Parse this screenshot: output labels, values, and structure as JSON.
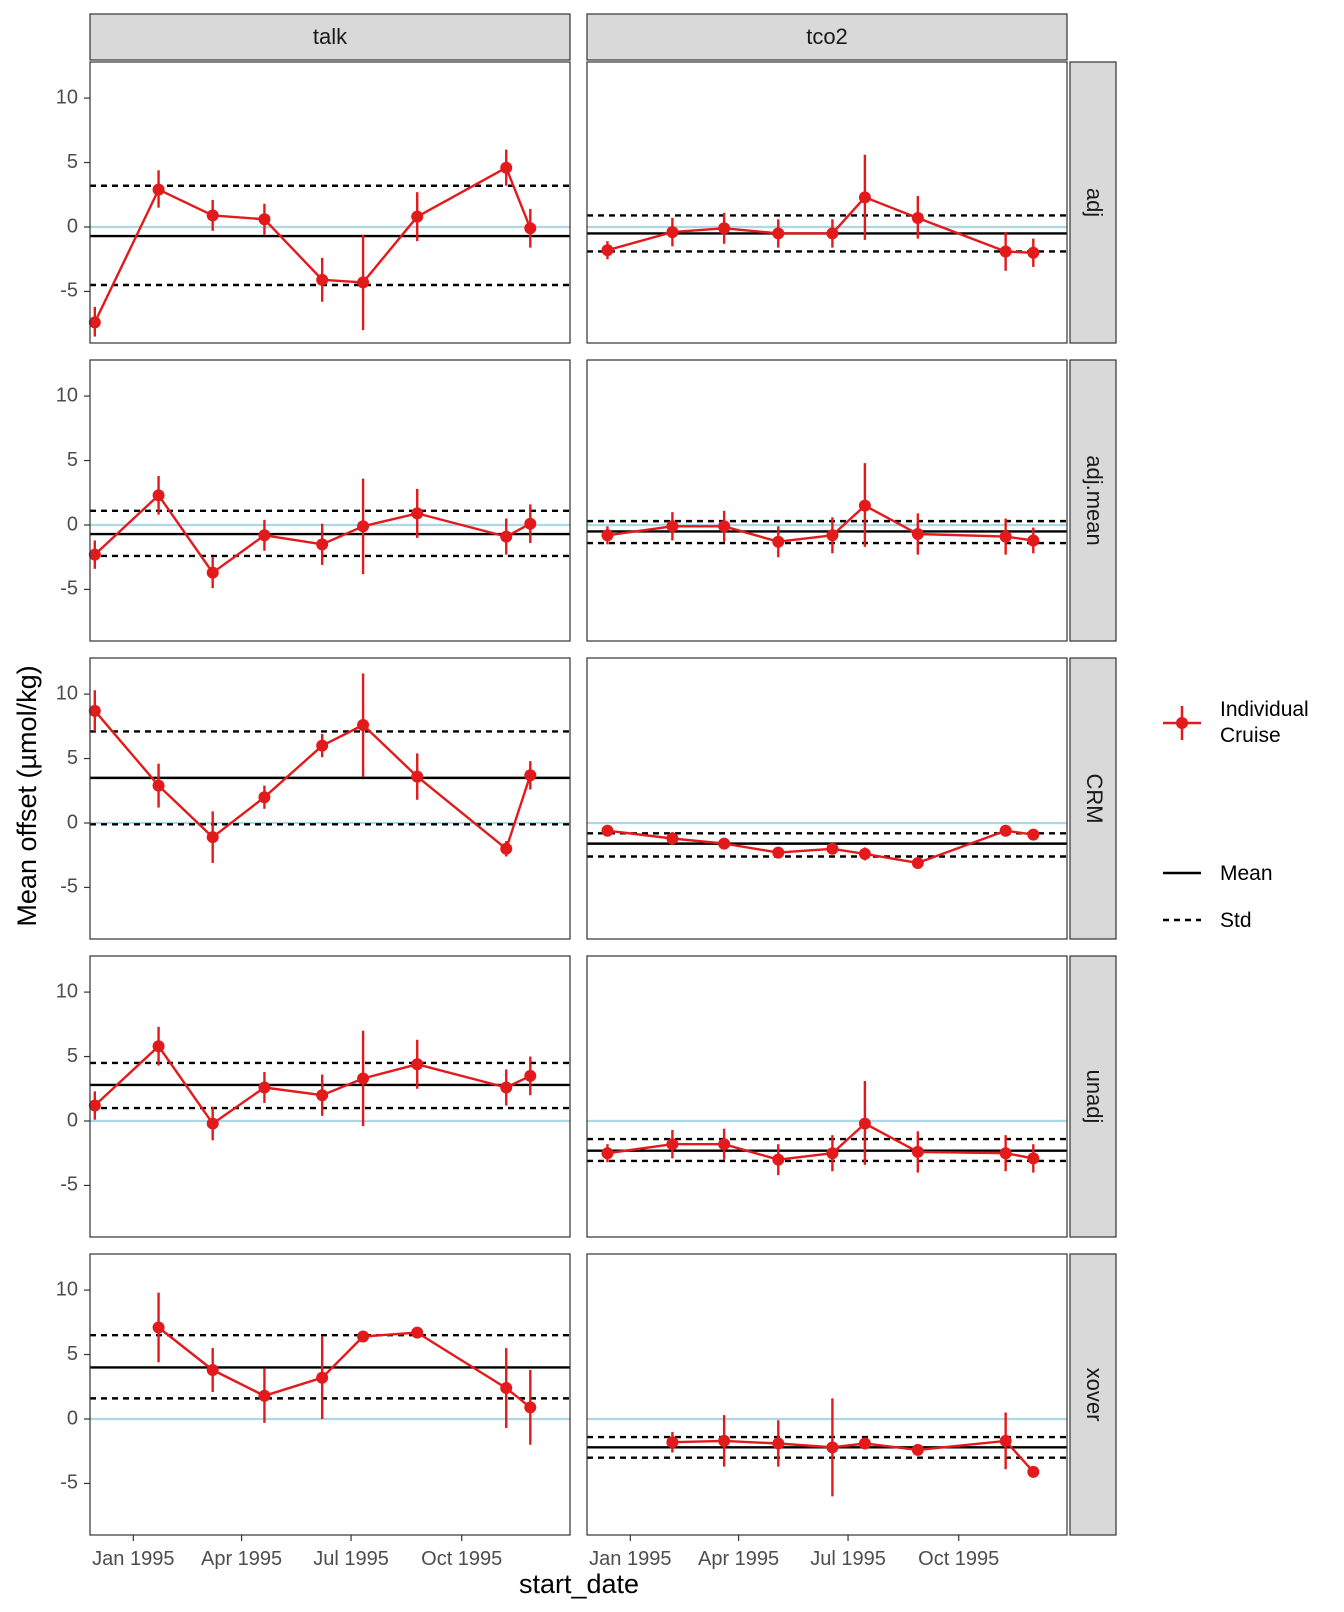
{
  "chart_data": {
    "type": "line",
    "ylabel": "Mean offset (µmol/kg)",
    "xlabel": "start_date",
    "xlim": [
      -36,
      363
    ],
    "ylim": [
      -9,
      12.8
    ],
    "yticks": [
      10,
      5,
      0,
      -5
    ],
    "ytick_labels": [
      "10",
      "5",
      "0",
      "-5"
    ],
    "xticks": [
      0,
      90,
      181,
      273
    ],
    "xtick_labels": [
      "Jan 1995",
      "Apr 1995",
      "Jul 1995",
      "Oct 1995"
    ],
    "zero_line": 0,
    "columns": [
      {
        "key": "talk",
        "label": "talk"
      },
      {
        "key": "tco2",
        "label": "tco2"
      }
    ],
    "rows": [
      {
        "key": "adj",
        "label": "adj"
      },
      {
        "key": "adj_mean",
        "label": "adj.mean"
      },
      {
        "key": "CRM",
        "label": "CRM"
      },
      {
        "key": "unadj",
        "label": "unadj"
      },
      {
        "key": "xover",
        "label": "xover"
      }
    ],
    "panels": [
      {
        "row": "adj",
        "col": "talk",
        "mean": -0.7,
        "std_upper": 3.2,
        "std_lower": -4.5,
        "points": [
          {
            "x": -32,
            "y": -7.4,
            "lo": -8.5,
            "hi": -6.2
          },
          {
            "x": 21,
            "y": 2.9,
            "lo": 1.5,
            "hi": 4.4
          },
          {
            "x": 66,
            "y": 0.9,
            "lo": -0.3,
            "hi": 2.1
          },
          {
            "x": 109,
            "y": 0.6,
            "lo": -0.6,
            "hi": 1.8
          },
          {
            "x": 157,
            "y": -4.1,
            "lo": -5.8,
            "hi": -2.4
          },
          {
            "x": 191,
            "y": -4.3,
            "lo": -8.0,
            "hi": -0.6
          },
          {
            "x": 236,
            "y": 0.8,
            "lo": -1.1,
            "hi": 2.7
          },
          {
            "x": 310,
            "y": 4.6,
            "lo": 3.2,
            "hi": 6.0
          },
          {
            "x": 330,
            "y": -0.1,
            "lo": -1.6,
            "hi": 1.4
          }
        ]
      },
      {
        "row": "adj",
        "col": "tco2",
        "mean": -0.5,
        "std_upper": 0.9,
        "std_lower": -1.9,
        "points": [
          {
            "x": -19,
            "y": -1.8,
            "lo": -2.5,
            "hi": -1.1
          },
          {
            "x": 35,
            "y": -0.4,
            "lo": -1.5,
            "hi": 0.7
          },
          {
            "x": 78,
            "y": -0.1,
            "lo": -1.3,
            "hi": 1.1
          },
          {
            "x": 123,
            "y": -0.5,
            "lo": -1.6,
            "hi": 0.6
          },
          {
            "x": 168,
            "y": -0.5,
            "lo": -1.6,
            "hi": 0.6
          },
          {
            "x": 195,
            "y": 2.3,
            "lo": -1.0,
            "hi": 5.6
          },
          {
            "x": 239,
            "y": 0.7,
            "lo": -0.9,
            "hi": 2.4
          },
          {
            "x": 312,
            "y": -1.9,
            "lo": -3.4,
            "hi": -0.4
          },
          {
            "x": 335,
            "y": -2.0,
            "lo": -3.1,
            "hi": -0.9
          }
        ]
      },
      {
        "row": "adj_mean",
        "col": "talk",
        "mean": -0.7,
        "std_upper": 1.1,
        "std_lower": -2.4,
        "points": [
          {
            "x": -32,
            "y": -2.3,
            "lo": -3.4,
            "hi": -1.2
          },
          {
            "x": 21,
            "y": 2.3,
            "lo": 0.8,
            "hi": 3.8
          },
          {
            "x": 66,
            "y": -3.7,
            "lo": -4.9,
            "hi": -2.5
          },
          {
            "x": 109,
            "y": -0.8,
            "lo": -2.0,
            "hi": 0.4
          },
          {
            "x": 157,
            "y": -1.5,
            "lo": -3.1,
            "hi": 0.1
          },
          {
            "x": 191,
            "y": -0.1,
            "lo": -3.8,
            "hi": 3.6
          },
          {
            "x": 236,
            "y": 0.9,
            "lo": -1.0,
            "hi": 2.8
          },
          {
            "x": 310,
            "y": -0.9,
            "lo": -2.3,
            "hi": 0.5
          },
          {
            "x": 330,
            "y": 0.1,
            "lo": -1.4,
            "hi": 1.6
          }
        ]
      },
      {
        "row": "adj_mean",
        "col": "tco2",
        "mean": -0.5,
        "std_upper": 0.3,
        "std_lower": -1.4,
        "points": [
          {
            "x": -19,
            "y": -0.8,
            "lo": -1.5,
            "hi": -0.1
          },
          {
            "x": 35,
            "y": -0.1,
            "lo": -1.2,
            "hi": 1.0
          },
          {
            "x": 78,
            "y": -0.1,
            "lo": -1.3,
            "hi": 1.1
          },
          {
            "x": 123,
            "y": -1.3,
            "lo": -2.5,
            "hi": -0.1
          },
          {
            "x": 168,
            "y": -0.8,
            "lo": -2.2,
            "hi": 0.6
          },
          {
            "x": 195,
            "y": 1.5,
            "lo": -1.7,
            "hi": 4.8
          },
          {
            "x": 239,
            "y": -0.7,
            "lo": -2.3,
            "hi": 0.9
          },
          {
            "x": 312,
            "y": -0.9,
            "lo": -2.3,
            "hi": 0.5
          },
          {
            "x": 335,
            "y": -1.2,
            "lo": -2.2,
            "hi": -0.2
          }
        ]
      },
      {
        "row": "CRM",
        "col": "talk",
        "mean": 3.5,
        "std_upper": 7.1,
        "std_lower": -0.1,
        "points": [
          {
            "x": -32,
            "y": 8.7,
            "lo": 7.1,
            "hi": 10.3
          },
          {
            "x": 21,
            "y": 2.9,
            "lo": 1.2,
            "hi": 4.6
          },
          {
            "x": 66,
            "y": -1.1,
            "lo": -3.1,
            "hi": 0.9
          },
          {
            "x": 109,
            "y": 2.0,
            "lo": 1.1,
            "hi": 2.9
          },
          {
            "x": 157,
            "y": 6.0,
            "lo": 5.1,
            "hi": 6.9
          },
          {
            "x": 191,
            "y": 7.6,
            "lo": 3.6,
            "hi": 11.6
          },
          {
            "x": 236,
            "y": 3.6,
            "lo": 1.8,
            "hi": 5.4
          },
          {
            "x": 310,
            "y": -2.0,
            "lo": -2.6,
            "hi": -1.4
          },
          {
            "x": 330,
            "y": 3.7,
            "lo": 2.6,
            "hi": 4.8
          }
        ]
      },
      {
        "row": "CRM",
        "col": "tco2",
        "mean": -1.6,
        "std_upper": -0.8,
        "std_lower": -2.6,
        "points": [
          {
            "x": -19,
            "y": -0.6,
            "lo": -0.9,
            "hi": -0.3
          },
          {
            "x": 35,
            "y": -1.2,
            "lo": -1.7,
            "hi": -0.7
          },
          {
            "x": 78,
            "y": -1.6,
            "lo": -2.0,
            "hi": -1.2
          },
          {
            "x": 123,
            "y": -2.3,
            "lo": -2.6,
            "hi": -2.0
          },
          {
            "x": 168,
            "y": -2.0,
            "lo": -2.4,
            "hi": -1.6
          },
          {
            "x": 195,
            "y": -2.4,
            "lo": -2.9,
            "hi": -1.9
          },
          {
            "x": 239,
            "y": -3.1,
            "lo": -3.4,
            "hi": -2.8
          },
          {
            "x": 312,
            "y": -0.6,
            "lo": -0.9,
            "hi": -0.3
          },
          {
            "x": 335,
            "y": -0.9,
            "lo": -1.3,
            "hi": -0.5
          }
        ]
      },
      {
        "row": "unadj",
        "col": "talk",
        "mean": 2.8,
        "std_upper": 4.5,
        "std_lower": 1.0,
        "points": [
          {
            "x": -32,
            "y": 1.2,
            "lo": 0.1,
            "hi": 2.3
          },
          {
            "x": 21,
            "y": 5.8,
            "lo": 4.3,
            "hi": 7.3
          },
          {
            "x": 66,
            "y": -0.2,
            "lo": -1.5,
            "hi": 1.1
          },
          {
            "x": 109,
            "y": 2.6,
            "lo": 1.4,
            "hi": 3.8
          },
          {
            "x": 157,
            "y": 2.0,
            "lo": 0.4,
            "hi": 3.6
          },
          {
            "x": 191,
            "y": 3.3,
            "lo": -0.4,
            "hi": 7.0
          },
          {
            "x": 236,
            "y": 4.4,
            "lo": 2.5,
            "hi": 6.3
          },
          {
            "x": 310,
            "y": 2.6,
            "lo": 1.2,
            "hi": 4.0
          },
          {
            "x": 330,
            "y": 3.5,
            "lo": 2.0,
            "hi": 5.0
          }
        ]
      },
      {
        "row": "unadj",
        "col": "tco2",
        "mean": -2.3,
        "std_upper": -1.4,
        "std_lower": -3.1,
        "points": [
          {
            "x": -19,
            "y": -2.5,
            "lo": -3.2,
            "hi": -1.8
          },
          {
            "x": 35,
            "y": -1.8,
            "lo": -2.9,
            "hi": -0.7
          },
          {
            "x": 78,
            "y": -1.8,
            "lo": -3.0,
            "hi": -0.6
          },
          {
            "x": 123,
            "y": -3.0,
            "lo": -4.2,
            "hi": -1.8
          },
          {
            "x": 168,
            "y": -2.5,
            "lo": -3.9,
            "hi": -1.1
          },
          {
            "x": 195,
            "y": -0.2,
            "lo": -3.4,
            "hi": 3.1
          },
          {
            "x": 239,
            "y": -2.4,
            "lo": -4.0,
            "hi": -0.8
          },
          {
            "x": 312,
            "y": -2.5,
            "lo": -3.9,
            "hi": -1.1
          },
          {
            "x": 335,
            "y": -2.9,
            "lo": -4.0,
            "hi": -1.8
          }
        ]
      },
      {
        "row": "xover",
        "col": "talk",
        "mean": 4.0,
        "std_upper": 6.5,
        "std_lower": 1.6,
        "points": [
          {
            "x": 21,
            "y": 7.1,
            "lo": 4.4,
            "hi": 9.8
          },
          {
            "x": 66,
            "y": 3.8,
            "lo": 2.1,
            "hi": 5.5
          },
          {
            "x": 109,
            "y": 1.8,
            "lo": -0.3,
            "hi": 3.9
          },
          {
            "x": 157,
            "y": 3.2,
            "lo": 0.0,
            "hi": 6.4
          },
          {
            "x": 191,
            "y": 6.4,
            "lo": 6.1,
            "hi": 6.7
          },
          {
            "x": 236,
            "y": 6.7,
            "lo": 6.4,
            "hi": 7.0
          },
          {
            "x": 310,
            "y": 2.4,
            "lo": -0.7,
            "hi": 5.5
          },
          {
            "x": 330,
            "y": 0.9,
            "lo": -2.0,
            "hi": 3.8
          }
        ]
      },
      {
        "row": "xover",
        "col": "tco2",
        "mean": -2.2,
        "std_upper": -1.4,
        "std_lower": -3.0,
        "points": [
          {
            "x": 35,
            "y": -1.8,
            "lo": -2.6,
            "hi": -1.0
          },
          {
            "x": 78,
            "y": -1.7,
            "lo": -3.7,
            "hi": 0.3
          },
          {
            "x": 123,
            "y": -1.9,
            "lo": -3.7,
            "hi": -0.1
          },
          {
            "x": 168,
            "y": -2.2,
            "lo": -6.0,
            "hi": 1.6
          },
          {
            "x": 195,
            "y": -1.9,
            "lo": -2.2,
            "hi": -1.6
          },
          {
            "x": 239,
            "y": -2.4,
            "lo": -2.7,
            "hi": -2.1
          },
          {
            "x": 312,
            "y": -1.7,
            "lo": -3.9,
            "hi": 0.5
          },
          {
            "x": 335,
            "y": -4.1,
            "lo": -4.4,
            "hi": -3.8
          }
        ]
      }
    ],
    "legend": {
      "cruise_label_line1": "Individual",
      "cruise_label_line2": "Cruise",
      "mean_label": "Mean",
      "std_label": "Std"
    },
    "colors": {
      "series": "#e31a1c",
      "zero_line": "#add8e6",
      "reference": "#000000",
      "strip_fill": "#d9d9d9",
      "panel_border": "#333333"
    }
  }
}
